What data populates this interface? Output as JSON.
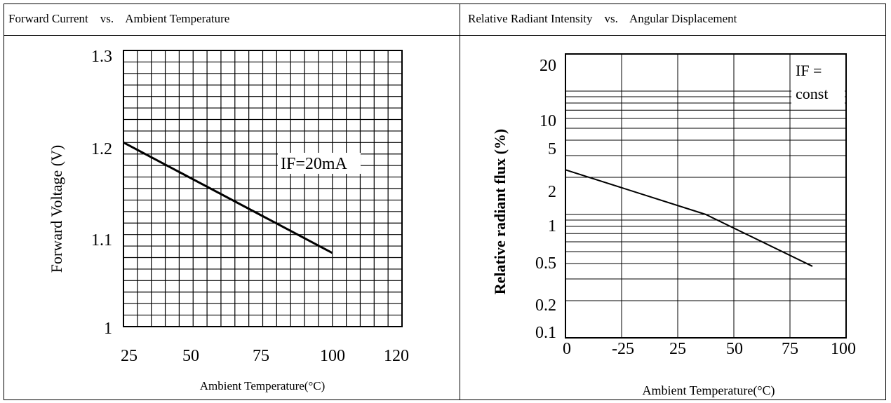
{
  "headers": {
    "left": "Forward Current    vs.    Ambient Temperature",
    "right": "Relative Radiant Intensity    vs.    Angular Displacement"
  },
  "chart_data": [
    {
      "type": "line",
      "title": "Forward Current    vs.    Ambient Temperature",
      "xlabel": "Ambient Temperature(°C)",
      "ylabel": "Forward   Voltage (V)",
      "x_tick_labels": [
        "25",
        "50",
        "75",
        "100",
        "120"
      ],
      "y_tick_labels": [
        "1.3",
        "1.2",
        "1.1",
        "1"
      ],
      "xlim": [
        25,
        125
      ],
      "ylim": [
        1.0,
        1.3
      ],
      "grid": true,
      "annotation": "IF=20mA",
      "series": [
        {
          "x": [
            25,
            100
          ],
          "y": [
            1.2,
            1.08
          ]
        }
      ]
    },
    {
      "type": "line",
      "title": "Relative Radiant Intensity    vs.    Angular Displacement",
      "xlabel": "Ambient Temperature(°C)",
      "ylabel": "Relative radiant flux (%)",
      "x_tick_labels": [
        "0",
        "-25",
        "25",
        "50",
        "75",
        "100"
      ],
      "y_tick_labels": [
        "20",
        "10",
        "5",
        "2",
        "1",
        "0.5",
        "0.2",
        "0.1"
      ],
      "y_scale": "log",
      "xlim": [
        -50,
        100
      ],
      "ylim": [
        0.1,
        20
      ],
      "grid": true,
      "annotation": [
        "IF =",
        "const"
      ],
      "series": [
        {
          "x": [
            -50,
            25,
            82
          ],
          "y": [
            2.3,
            1.0,
            0.38
          ]
        }
      ]
    }
  ]
}
